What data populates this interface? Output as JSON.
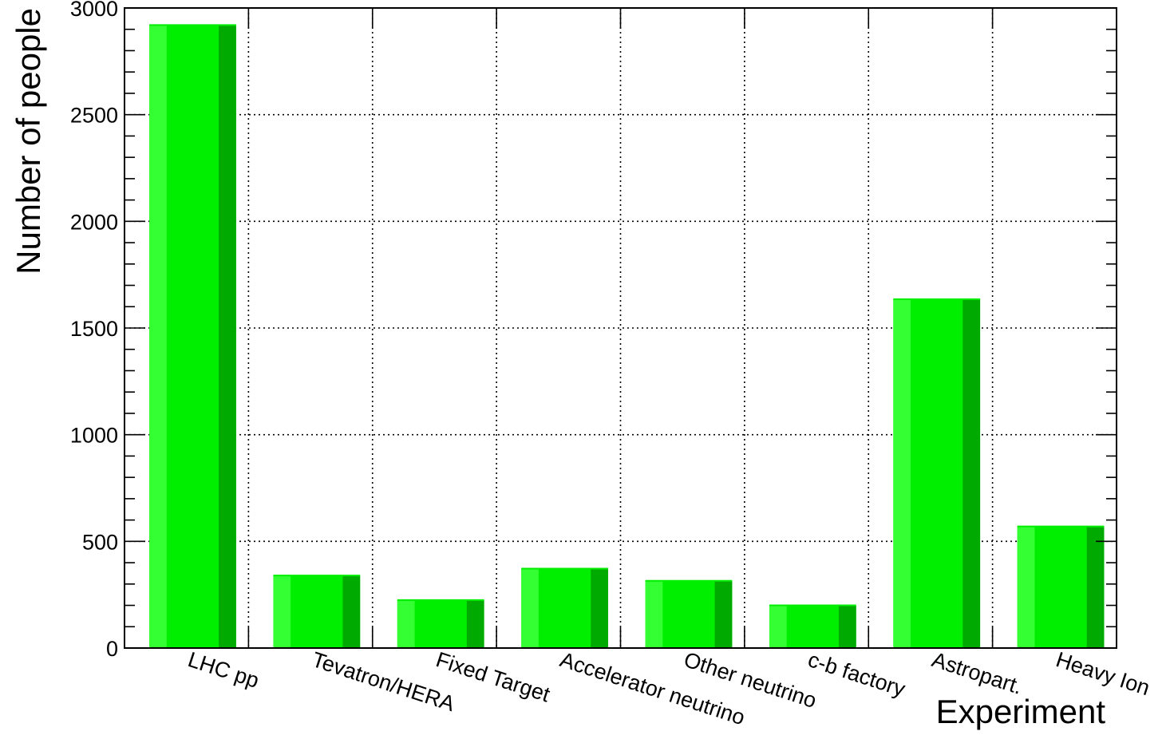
{
  "chart_data": {
    "type": "bar",
    "title": "",
    "xlabel": "Experiment",
    "ylabel": "Number of people",
    "categories": [
      "LHC pp",
      "Tevatron/HERA",
      "Fixed Target",
      "Accelerator neutrino",
      "Other neutrino",
      "c-b factory",
      "Astropart.",
      "Heavy Ion"
    ],
    "values": [
      2920,
      340,
      225,
      372,
      315,
      200,
      1635,
      570
    ],
    "ylim": [
      0,
      3000
    ],
    "yticks": [
      0,
      500,
      1000,
      1500,
      2000,
      2500,
      3000
    ],
    "grid": true,
    "legend": "none",
    "colors": {
      "bar_main": "#00ee00",
      "bar_light": "#33ff33",
      "bar_dark": "#00aa00",
      "grid": "#000000"
    }
  }
}
